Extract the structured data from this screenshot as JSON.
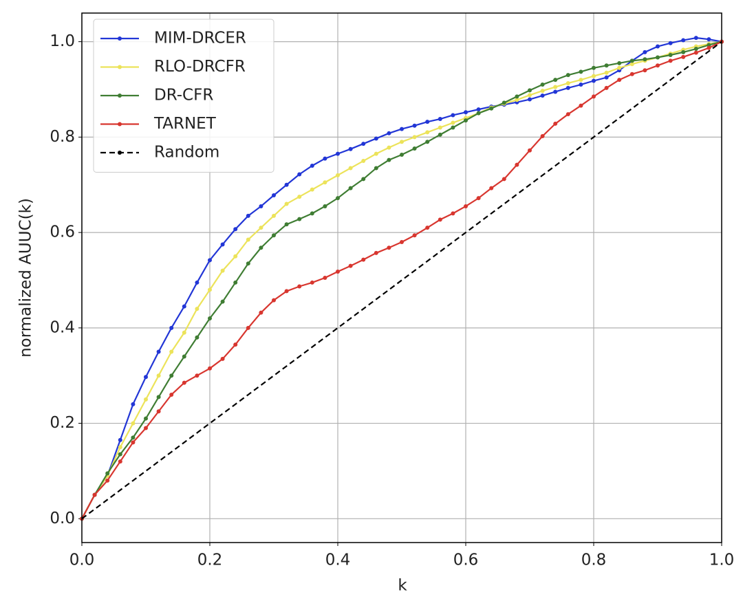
{
  "chart_data": {
    "type": "line",
    "xlabel": "k",
    "ylabel": "normalized AUUC(k)",
    "x": [
      0,
      0.02,
      0.04,
      0.06,
      0.08,
      0.1,
      0.12,
      0.14,
      0.16,
      0.18,
      0.2,
      0.22,
      0.24,
      0.26,
      0.28,
      0.3,
      0.32,
      0.34,
      0.36,
      0.38,
      0.4,
      0.42,
      0.44,
      0.46,
      0.48,
      0.5,
      0.52,
      0.54,
      0.56,
      0.58,
      0.6,
      0.62,
      0.64,
      0.66,
      0.68,
      0.7,
      0.72,
      0.74,
      0.76,
      0.78,
      0.8,
      0.82,
      0.84,
      0.86,
      0.88,
      0.9,
      0.92,
      0.94,
      0.96,
      0.98,
      1.0
    ],
    "series": [
      {
        "name": "MIM-DRCER",
        "color": "#2236d6",
        "linestyle": "solid",
        "markers": true,
        "values": [
          0,
          0.05,
          0.09,
          0.165,
          0.24,
          0.297,
          0.35,
          0.4,
          0.445,
          0.495,
          0.542,
          0.575,
          0.607,
          0.635,
          0.655,
          0.678,
          0.7,
          0.722,
          0.74,
          0.755,
          0.765,
          0.775,
          0.786,
          0.797,
          0.808,
          0.817,
          0.824,
          0.832,
          0.838,
          0.846,
          0.852,
          0.858,
          0.864,
          0.868,
          0.873,
          0.879,
          0.887,
          0.895,
          0.903,
          0.91,
          0.918,
          0.925,
          0.94,
          0.96,
          0.978,
          0.99,
          0.997,
          1.003,
          1.008,
          1.005,
          1.0
        ]
      },
      {
        "name": "RLO-DRCFR",
        "color": "#ece35a",
        "linestyle": "solid",
        "markers": true,
        "values": [
          0,
          0.05,
          0.09,
          0.15,
          0.2,
          0.25,
          0.3,
          0.35,
          0.39,
          0.44,
          0.48,
          0.52,
          0.55,
          0.585,
          0.61,
          0.635,
          0.66,
          0.675,
          0.69,
          0.705,
          0.72,
          0.735,
          0.75,
          0.765,
          0.778,
          0.79,
          0.8,
          0.81,
          0.82,
          0.83,
          0.84,
          0.85,
          0.862,
          0.87,
          0.878,
          0.888,
          0.897,
          0.905,
          0.913,
          0.92,
          0.928,
          0.935,
          0.945,
          0.953,
          0.96,
          0.967,
          0.975,
          0.983,
          0.99,
          0.995,
          1.0
        ]
      },
      {
        "name": "DR-CFR",
        "color": "#3f7d33",
        "linestyle": "solid",
        "markers": true,
        "values": [
          0,
          0.05,
          0.095,
          0.135,
          0.17,
          0.21,
          0.255,
          0.3,
          0.34,
          0.38,
          0.42,
          0.455,
          0.495,
          0.535,
          0.568,
          0.594,
          0.617,
          0.628,
          0.64,
          0.655,
          0.672,
          0.693,
          0.712,
          0.735,
          0.752,
          0.763,
          0.776,
          0.79,
          0.805,
          0.82,
          0.835,
          0.85,
          0.86,
          0.872,
          0.885,
          0.898,
          0.91,
          0.92,
          0.93,
          0.937,
          0.945,
          0.95,
          0.955,
          0.96,
          0.963,
          0.967,
          0.972,
          0.978,
          0.985,
          0.993,
          1.0
        ]
      },
      {
        "name": "TARNET",
        "color": "#d8362f",
        "linestyle": "solid",
        "markers": true,
        "values": [
          0,
          0.05,
          0.08,
          0.12,
          0.16,
          0.19,
          0.225,
          0.26,
          0.285,
          0.3,
          0.315,
          0.335,
          0.365,
          0.4,
          0.432,
          0.458,
          0.477,
          0.487,
          0.495,
          0.505,
          0.518,
          0.53,
          0.543,
          0.557,
          0.568,
          0.58,
          0.594,
          0.61,
          0.627,
          0.64,
          0.655,
          0.672,
          0.693,
          0.712,
          0.742,
          0.772,
          0.802,
          0.828,
          0.848,
          0.866,
          0.885,
          0.903,
          0.92,
          0.932,
          0.94,
          0.95,
          0.96,
          0.968,
          0.977,
          0.987,
          1.0
        ]
      },
      {
        "name": "Random",
        "color": "#000000",
        "linestyle": "dashed",
        "markers": false,
        "values": [
          0,
          0.02,
          0.04,
          0.06,
          0.08,
          0.1,
          0.12,
          0.14,
          0.16,
          0.18,
          0.2,
          0.22,
          0.24,
          0.26,
          0.28,
          0.3,
          0.32,
          0.34,
          0.36,
          0.38,
          0.4,
          0.42,
          0.44,
          0.46,
          0.48,
          0.5,
          0.52,
          0.54,
          0.56,
          0.58,
          0.6,
          0.62,
          0.64,
          0.66,
          0.68,
          0.7,
          0.72,
          0.74,
          0.76,
          0.78,
          0.8,
          0.82,
          0.84,
          0.86,
          0.88,
          0.9,
          0.92,
          0.94,
          0.96,
          0.98,
          1.0
        ]
      }
    ],
    "xlim": [
      0,
      1
    ],
    "ylim": [
      -0.05,
      1.06
    ],
    "xticks": [
      {
        "value": 0,
        "label": "0.0"
      },
      {
        "value": 0.2,
        "label": "0.2"
      },
      {
        "value": 0.4,
        "label": "0.4"
      },
      {
        "value": 0.6,
        "label": "0.6"
      },
      {
        "value": 0.8,
        "label": "0.8"
      },
      {
        "value": 1,
        "label": "1.0"
      }
    ],
    "yticks": [
      {
        "value": 0,
        "label": "0.0"
      },
      {
        "value": 0.2,
        "label": "0.2"
      },
      {
        "value": 0.4,
        "label": "0.4"
      },
      {
        "value": 0.6,
        "label": "0.6"
      },
      {
        "value": 0.8,
        "label": "0.8"
      },
      {
        "value": 1,
        "label": "1.0"
      }
    ],
    "grid": true,
    "legend": "upper left"
  }
}
